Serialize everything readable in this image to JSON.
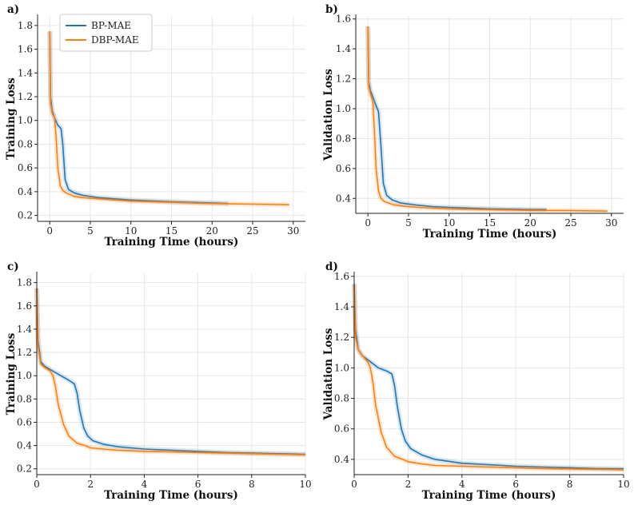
{
  "colors": {
    "bp": "#1f77b4",
    "dbp": "#ff7f0e",
    "grid": "#e6e6e6",
    "axis": "#222222"
  },
  "legend": {
    "items": [
      {
        "name": "BP-MAE",
        "color": "#1f77b4"
      },
      {
        "name": "DBP-MAE",
        "color": "#ff7f0e"
      }
    ],
    "placement": "top-left (panel a)"
  },
  "chart_data": [
    {
      "panel": "a)",
      "type": "line",
      "xlabel": "Training Time (hours)",
      "ylabel": "Training Loss",
      "xlim": [
        -1.5,
        31.5
      ],
      "ylim": [
        0.15,
        1.88
      ],
      "xticks": [
        0,
        5,
        10,
        15,
        20,
        25,
        30
      ],
      "yticks": [
        0.2,
        0.4,
        0.6,
        0.8,
        1.0,
        1.2,
        1.4,
        1.6,
        1.8
      ],
      "ytick_labels": [
        "0.2",
        "0.4",
        "0.6",
        "0.8",
        "1.0",
        "1.2",
        "1.4",
        "1.6",
        "1.8"
      ],
      "series": [
        {
          "name": "BP-MAE",
          "x": [
            0,
            0.1,
            0.3,
            0.6,
            1.0,
            1.4,
            1.6,
            1.9,
            2.3,
            3,
            4,
            6,
            8,
            10,
            15,
            20,
            22
          ],
          "y": [
            1.75,
            1.2,
            1.08,
            1.02,
            0.96,
            0.93,
            0.8,
            0.5,
            0.42,
            0.39,
            0.37,
            0.35,
            0.34,
            0.33,
            0.315,
            0.305,
            0.3
          ]
        },
        {
          "name": "DBP-MAE",
          "x": [
            0,
            0.1,
            0.3,
            0.6,
            0.8,
            1.0,
            1.3,
            1.6,
            2.0,
            3,
            4,
            6,
            8,
            10,
            15,
            20,
            25,
            29.5
          ],
          "y": [
            1.75,
            1.15,
            1.06,
            1.02,
            0.85,
            0.6,
            0.45,
            0.41,
            0.39,
            0.36,
            0.35,
            0.34,
            0.33,
            0.32,
            0.31,
            0.3,
            0.295,
            0.29
          ]
        }
      ]
    },
    {
      "panel": "b)",
      "type": "line",
      "xlabel": "Training Time (hours)",
      "ylabel": "Validation Loss",
      "xlim": [
        -1.5,
        31.5
      ],
      "ylim": [
        0.3,
        1.62
      ],
      "xticks": [
        0,
        5,
        10,
        15,
        20,
        25,
        30
      ],
      "yticks": [
        0.4,
        0.6,
        0.8,
        1.0,
        1.2,
        1.4,
        1.6
      ],
      "ytick_labels": [
        "0.4",
        "0.6",
        "0.8",
        "1.0",
        "1.2",
        "1.4",
        "1.6"
      ],
      "series": [
        {
          "name": "BP-MAE",
          "x": [
            0,
            0.1,
            0.3,
            0.6,
            1.0,
            1.3,
            1.6,
            1.9,
            2.3,
            3,
            4,
            6,
            8,
            10,
            15,
            20,
            22
          ],
          "y": [
            1.55,
            1.18,
            1.12,
            1.08,
            1.02,
            0.98,
            0.75,
            0.5,
            0.42,
            0.39,
            0.37,
            0.355,
            0.345,
            0.34,
            0.33,
            0.325,
            0.325
          ]
        },
        {
          "name": "DBP-MAE",
          "x": [
            0,
            0.1,
            0.3,
            0.6,
            0.8,
            1.0,
            1.3,
            1.6,
            2.0,
            3,
            4,
            6,
            8,
            10,
            15,
            20,
            25,
            29.5
          ],
          "y": [
            1.55,
            1.15,
            1.1,
            1.05,
            0.85,
            0.6,
            0.45,
            0.4,
            0.38,
            0.36,
            0.35,
            0.34,
            0.335,
            0.33,
            0.325,
            0.32,
            0.318,
            0.315
          ]
        }
      ]
    },
    {
      "panel": "c)",
      "type": "line",
      "xlabel": "Training Time (hours)",
      "ylabel": "Training Loss",
      "xlim": [
        0,
        10
      ],
      "ylim": [
        0.15,
        1.88
      ],
      "xticks": [
        0,
        2,
        4,
        6,
        8,
        10
      ],
      "yticks": [
        0.2,
        0.4,
        0.6,
        0.8,
        1.0,
        1.2,
        1.4,
        1.6,
        1.8
      ],
      "ytick_labels": [
        "0.2",
        "0.4",
        "0.6",
        "0.8",
        "1.0",
        "1.2",
        "1.4",
        "1.6",
        "1.8"
      ],
      "series": [
        {
          "name": "BP-MAE",
          "x": [
            0,
            0.05,
            0.15,
            0.3,
            0.6,
            0.9,
            1.2,
            1.4,
            1.5,
            1.6,
            1.75,
            1.9,
            2.1,
            2.5,
            3,
            4,
            5,
            6,
            7,
            8,
            9,
            10
          ],
          "y": [
            1.75,
            1.3,
            1.12,
            1.08,
            1.04,
            1.0,
            0.96,
            0.93,
            0.85,
            0.7,
            0.55,
            0.48,
            0.44,
            0.41,
            0.39,
            0.37,
            0.36,
            0.35,
            0.34,
            0.335,
            0.33,
            0.325
          ]
        },
        {
          "name": "DBP-MAE",
          "x": [
            0,
            0.05,
            0.15,
            0.3,
            0.5,
            0.6,
            0.7,
            0.8,
            1.0,
            1.2,
            1.5,
            1.8,
            2.0,
            2.5,
            3,
            4,
            5,
            6,
            7,
            8,
            9,
            10
          ],
          "y": [
            1.75,
            1.25,
            1.1,
            1.07,
            1.04,
            1.0,
            0.9,
            0.75,
            0.58,
            0.48,
            0.42,
            0.4,
            0.38,
            0.37,
            0.36,
            0.35,
            0.345,
            0.34,
            0.335,
            0.33,
            0.325,
            0.32
          ]
        }
      ]
    },
    {
      "panel": "d)",
      "type": "line",
      "xlabel": "Training Time (hours)",
      "ylabel": "Validation Loss",
      "xlim": [
        0,
        10
      ],
      "ylim": [
        0.3,
        1.62
      ],
      "xticks": [
        0,
        2,
        4,
        6,
        8,
        10
      ],
      "yticks": [
        0.4,
        0.6,
        0.8,
        1.0,
        1.2,
        1.4,
        1.6
      ],
      "ytick_labels": [
        "0.4",
        "0.6",
        "0.8",
        "1.0",
        "1.2",
        "1.4",
        "1.6"
      ],
      "series": [
        {
          "name": "BP-MAE",
          "x": [
            0,
            0.05,
            0.15,
            0.3,
            0.6,
            0.9,
            1.2,
            1.4,
            1.5,
            1.6,
            1.75,
            1.9,
            2.1,
            2.5,
            3,
            4,
            5,
            6,
            7,
            8,
            9,
            10
          ],
          "y": [
            1.55,
            1.25,
            1.12,
            1.08,
            1.04,
            1.0,
            0.98,
            0.96,
            0.88,
            0.75,
            0.6,
            0.52,
            0.47,
            0.43,
            0.4,
            0.375,
            0.365,
            0.355,
            0.35,
            0.345,
            0.34,
            0.338
          ]
        },
        {
          "name": "DBP-MAE",
          "x": [
            0,
            0.05,
            0.15,
            0.3,
            0.5,
            0.6,
            0.7,
            0.8,
            1.0,
            1.2,
            1.5,
            1.8,
            2.0,
            2.5,
            3,
            4,
            5,
            6,
            7,
            8,
            9,
            10
          ],
          "y": [
            1.55,
            1.2,
            1.12,
            1.08,
            1.04,
            1.0,
            0.9,
            0.75,
            0.58,
            0.48,
            0.42,
            0.4,
            0.385,
            0.37,
            0.36,
            0.355,
            0.35,
            0.345,
            0.34,
            0.337,
            0.335,
            0.332
          ]
        }
      ]
    }
  ]
}
